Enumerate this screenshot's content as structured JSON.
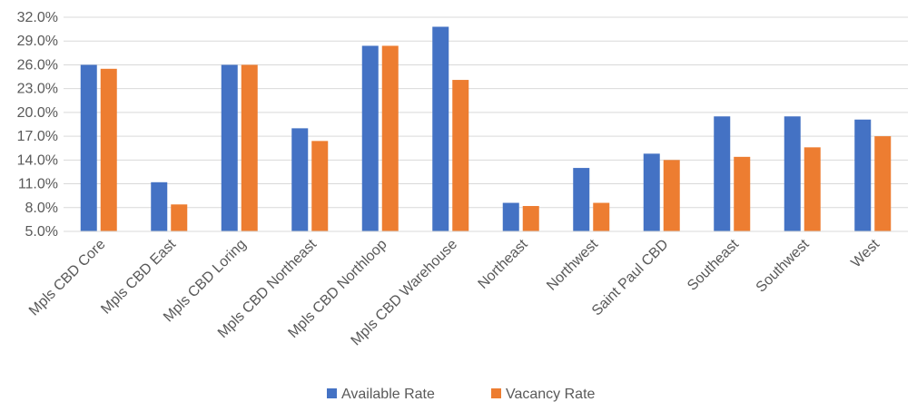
{
  "chart_data": {
    "type": "bar",
    "title": "",
    "xlabel": "",
    "ylabel": "",
    "categories": [
      "Mpls CBD Core",
      "Mpls CBD East",
      "Mpls CBD Loring",
      "Mpls CBD Northeast",
      "Mpls CBD Northloop",
      "Mpls CBD Warehouse",
      "Northeast",
      "Northwest",
      "Saint Paul CBD",
      "Southeast",
      "Southwest",
      "West"
    ],
    "series": [
      {
        "name": "Available Rate",
        "color": "#4472C4",
        "values": [
          26.0,
          11.2,
          26.0,
          18.0,
          28.4,
          30.8,
          8.6,
          13.0,
          14.8,
          19.5,
          19.5,
          19.1
        ]
      },
      {
        "name": "Vacancy Rate",
        "color": "#ED7D31",
        "values": [
          25.5,
          8.4,
          26.0,
          16.4,
          28.4,
          24.1,
          8.2,
          8.6,
          14.0,
          14.4,
          15.6,
          17.0
        ]
      }
    ],
    "ylim": [
      5.0,
      32.0
    ],
    "yticks": [
      "5.0%",
      "8.0%",
      "11.0%",
      "14.0%",
      "17.0%",
      "20.0%",
      "23.0%",
      "26.0%",
      "29.0%",
      "32.0%"
    ],
    "ytick_values": [
      5,
      8,
      11,
      14,
      17,
      20,
      23,
      26,
      29,
      32
    ],
    "grid": true,
    "legend": "bottom"
  }
}
